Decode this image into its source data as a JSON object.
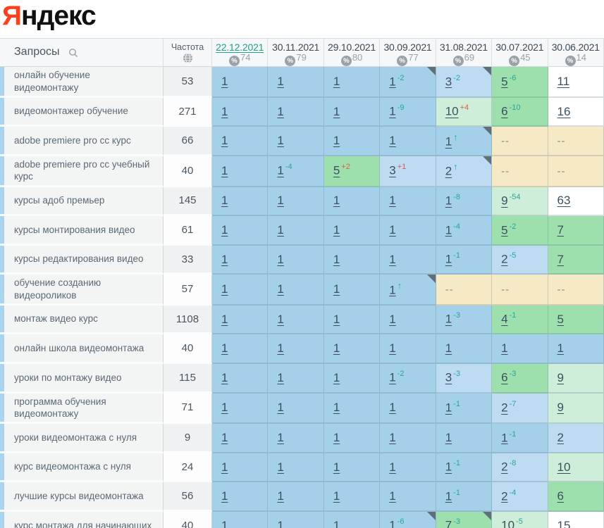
{
  "logo": {
    "text_red": "Я",
    "text_black": "ндекс"
  },
  "header": {
    "queries_label": "Запросы",
    "frequency_label": "Частота",
    "percent_symbol": "%",
    "dates": [
      {
        "label": "22.12.2021",
        "visibility": 74,
        "active": true
      },
      {
        "label": "30.11.2021",
        "visibility": 79,
        "active": false
      },
      {
        "label": "29.10.2021",
        "visibility": 80,
        "active": false
      },
      {
        "label": "30.09.2021",
        "visibility": 77,
        "active": false
      },
      {
        "label": "31.08.2021",
        "visibility": 69,
        "active": false
      },
      {
        "label": "30.07.2021",
        "visibility": 45,
        "active": false
      },
      {
        "label": "30.06.2021",
        "visibility": 14,
        "active": false
      }
    ]
  },
  "colors": {
    "logo_red": "#fc3f1d",
    "active_date_teal": "#1ba287",
    "delta_improve_teal": "#26a69a",
    "delta_worse_red": "#e05c4e",
    "cell_pos1_blue": "#a4d0ea",
    "cell_pos2_3_blue": "#bddcf2",
    "cell_pos4_7_green": "#9edfae",
    "cell_pos8_10_green": "#cfeeda",
    "cell_pos11plus_white": "#ffffff",
    "cell_absent_beige": "#f6e9c6"
  },
  "rows": [
    {
      "query": "онлайн обучение видеомонтажу",
      "frequency": "53",
      "cells": [
        {
          "value": "1",
          "bg": "blue"
        },
        {
          "value": "1",
          "bg": "blue"
        },
        {
          "value": "1",
          "bg": "blue"
        },
        {
          "value": "1",
          "delta": "-2",
          "bg": "blue",
          "fold": true
        },
        {
          "value": "3",
          "delta": "-2",
          "bg": "blue2",
          "fold": true
        },
        {
          "value": "5",
          "delta": "-6",
          "bg": "green"
        },
        {
          "value": "11",
          "bg": "white"
        }
      ]
    },
    {
      "query": "видеомонтажер обучение",
      "frequency": "271",
      "cells": [
        {
          "value": "1",
          "bg": "blue"
        },
        {
          "value": "1",
          "bg": "blue"
        },
        {
          "value": "1",
          "bg": "blue"
        },
        {
          "value": "1",
          "delta": "-9",
          "bg": "blue"
        },
        {
          "value": "10",
          "delta": "+4",
          "bg": "green2"
        },
        {
          "value": "6",
          "delta": "-10",
          "bg": "green"
        },
        {
          "value": "16",
          "bg": "white"
        }
      ]
    },
    {
      "query": "adobe premiere pro cc курс",
      "frequency": "66",
      "cells": [
        {
          "value": "1",
          "bg": "blue"
        },
        {
          "value": "1",
          "bg": "blue"
        },
        {
          "value": "1",
          "bg": "blue"
        },
        {
          "value": "1",
          "bg": "blue"
        },
        {
          "value": "1",
          "arrow": "↑",
          "bg": "blue",
          "fold": true
        },
        {
          "value": "--",
          "bg": "none"
        },
        {
          "value": "--",
          "bg": "none"
        }
      ]
    },
    {
      "query": "adobe premiere pro cc учебный курс",
      "frequency": "40",
      "cells": [
        {
          "value": "1",
          "bg": "blue"
        },
        {
          "value": "1",
          "delta": "-4",
          "bg": "blue"
        },
        {
          "value": "5",
          "delta": "+2",
          "bg": "green"
        },
        {
          "value": "3",
          "delta": "+1",
          "bg": "blue2"
        },
        {
          "value": "2",
          "arrow": "↑",
          "bg": "blue2",
          "fold": true
        },
        {
          "value": "--",
          "bg": "none"
        },
        {
          "value": "--",
          "bg": "none"
        }
      ]
    },
    {
      "query": "курсы адоб премьер",
      "frequency": "145",
      "cells": [
        {
          "value": "1",
          "bg": "blue"
        },
        {
          "value": "1",
          "bg": "blue"
        },
        {
          "value": "1",
          "bg": "blue"
        },
        {
          "value": "1",
          "bg": "blue"
        },
        {
          "value": "1",
          "delta": "-8",
          "bg": "blue"
        },
        {
          "value": "9",
          "delta": "-54",
          "bg": "green2"
        },
        {
          "value": "63",
          "bg": "white"
        }
      ]
    },
    {
      "query": "курсы монтирования видео",
      "frequency": "61",
      "cells": [
        {
          "value": "1",
          "bg": "blue"
        },
        {
          "value": "1",
          "bg": "blue"
        },
        {
          "value": "1",
          "bg": "blue"
        },
        {
          "value": "1",
          "bg": "blue"
        },
        {
          "value": "1",
          "delta": "-4",
          "bg": "blue"
        },
        {
          "value": "5",
          "delta": "-2",
          "bg": "green"
        },
        {
          "value": "7",
          "bg": "green"
        }
      ]
    },
    {
      "query": "курсы редактирования видео",
      "frequency": "33",
      "cells": [
        {
          "value": "1",
          "bg": "blue"
        },
        {
          "value": "1",
          "bg": "blue"
        },
        {
          "value": "1",
          "bg": "blue"
        },
        {
          "value": "1",
          "bg": "blue"
        },
        {
          "value": "1",
          "delta": "-1",
          "bg": "blue"
        },
        {
          "value": "2",
          "delta": "-5",
          "bg": "blue2"
        },
        {
          "value": "7",
          "bg": "green"
        }
      ]
    },
    {
      "query": "обучение созданию видеороликов",
      "frequency": "57",
      "cells": [
        {
          "value": "1",
          "bg": "blue"
        },
        {
          "value": "1",
          "bg": "blue"
        },
        {
          "value": "1",
          "bg": "blue"
        },
        {
          "value": "1",
          "arrow": "↑",
          "bg": "blue",
          "fold": true
        },
        {
          "value": "--",
          "bg": "none"
        },
        {
          "value": "--",
          "bg": "none"
        },
        {
          "value": "--",
          "bg": "none"
        }
      ]
    },
    {
      "query": "монтаж видео курс",
      "frequency": "1108",
      "cells": [
        {
          "value": "1",
          "bg": "blue"
        },
        {
          "value": "1",
          "bg": "blue"
        },
        {
          "value": "1",
          "bg": "blue"
        },
        {
          "value": "1",
          "bg": "blue"
        },
        {
          "value": "1",
          "delta": "-3",
          "bg": "blue"
        },
        {
          "value": "4",
          "delta": "-1",
          "bg": "green"
        },
        {
          "value": "5",
          "bg": "green"
        }
      ]
    },
    {
      "query": "онлайн школа видеомонтажа",
      "frequency": "40",
      "cells": [
        {
          "value": "1",
          "bg": "blue"
        },
        {
          "value": "1",
          "bg": "blue"
        },
        {
          "value": "1",
          "bg": "blue"
        },
        {
          "value": "1",
          "bg": "blue"
        },
        {
          "value": "1",
          "bg": "blue"
        },
        {
          "value": "1",
          "bg": "blue"
        },
        {
          "value": "1",
          "bg": "blue"
        }
      ]
    },
    {
      "query": "уроки по монтажу видео",
      "frequency": "115",
      "cells": [
        {
          "value": "1",
          "bg": "blue"
        },
        {
          "value": "1",
          "bg": "blue"
        },
        {
          "value": "1",
          "bg": "blue"
        },
        {
          "value": "1",
          "delta": "-2",
          "bg": "blue"
        },
        {
          "value": "3",
          "delta": "-3",
          "bg": "blue2"
        },
        {
          "value": "6",
          "delta": "-3",
          "bg": "green"
        },
        {
          "value": "9",
          "bg": "green2"
        }
      ]
    },
    {
      "query": "программа обучения видеомонтажу",
      "frequency": "71",
      "cells": [
        {
          "value": "1",
          "bg": "blue"
        },
        {
          "value": "1",
          "bg": "blue"
        },
        {
          "value": "1",
          "bg": "blue"
        },
        {
          "value": "1",
          "bg": "blue"
        },
        {
          "value": "1",
          "delta": "-1",
          "bg": "blue"
        },
        {
          "value": "2",
          "delta": "-7",
          "bg": "blue2"
        },
        {
          "value": "9",
          "bg": "green2"
        }
      ]
    },
    {
      "query": "уроки видеомонтажа с нуля",
      "frequency": "9",
      "cells": [
        {
          "value": "1",
          "bg": "blue"
        },
        {
          "value": "1",
          "bg": "blue"
        },
        {
          "value": "1",
          "bg": "blue"
        },
        {
          "value": "1",
          "bg": "blue"
        },
        {
          "value": "1",
          "bg": "blue"
        },
        {
          "value": "1",
          "delta": "-1",
          "bg": "blue"
        },
        {
          "value": "2",
          "bg": "blue2"
        }
      ]
    },
    {
      "query": "курс видеомонтажа с нуля",
      "frequency": "24",
      "cells": [
        {
          "value": "1",
          "bg": "blue"
        },
        {
          "value": "1",
          "bg": "blue"
        },
        {
          "value": "1",
          "bg": "blue"
        },
        {
          "value": "1",
          "bg": "blue"
        },
        {
          "value": "1",
          "delta": "-1",
          "bg": "blue"
        },
        {
          "value": "2",
          "delta": "-8",
          "bg": "blue2"
        },
        {
          "value": "10",
          "bg": "green2"
        }
      ]
    },
    {
      "query": "лучшие курсы видеомонтажа",
      "frequency": "56",
      "cells": [
        {
          "value": "1",
          "bg": "blue"
        },
        {
          "value": "1",
          "bg": "blue"
        },
        {
          "value": "1",
          "bg": "blue"
        },
        {
          "value": "1",
          "bg": "blue"
        },
        {
          "value": "1",
          "delta": "-1",
          "bg": "blue"
        },
        {
          "value": "2",
          "delta": "-4",
          "bg": "blue2"
        },
        {
          "value": "6",
          "bg": "green"
        }
      ]
    },
    {
      "query": "курс монтажа для начинающих",
      "frequency": "40",
      "cells": [
        {
          "value": "1",
          "bg": "blue"
        },
        {
          "value": "1",
          "bg": "blue"
        },
        {
          "value": "1",
          "bg": "blue"
        },
        {
          "value": "1",
          "delta": "-6",
          "bg": "blue",
          "fold": true
        },
        {
          "value": "7",
          "delta": "-3",
          "bg": "green",
          "fold": true
        },
        {
          "value": "10",
          "delta": "-5",
          "bg": "green2"
        },
        {
          "value": "15",
          "bg": "white"
        }
      ]
    }
  ]
}
